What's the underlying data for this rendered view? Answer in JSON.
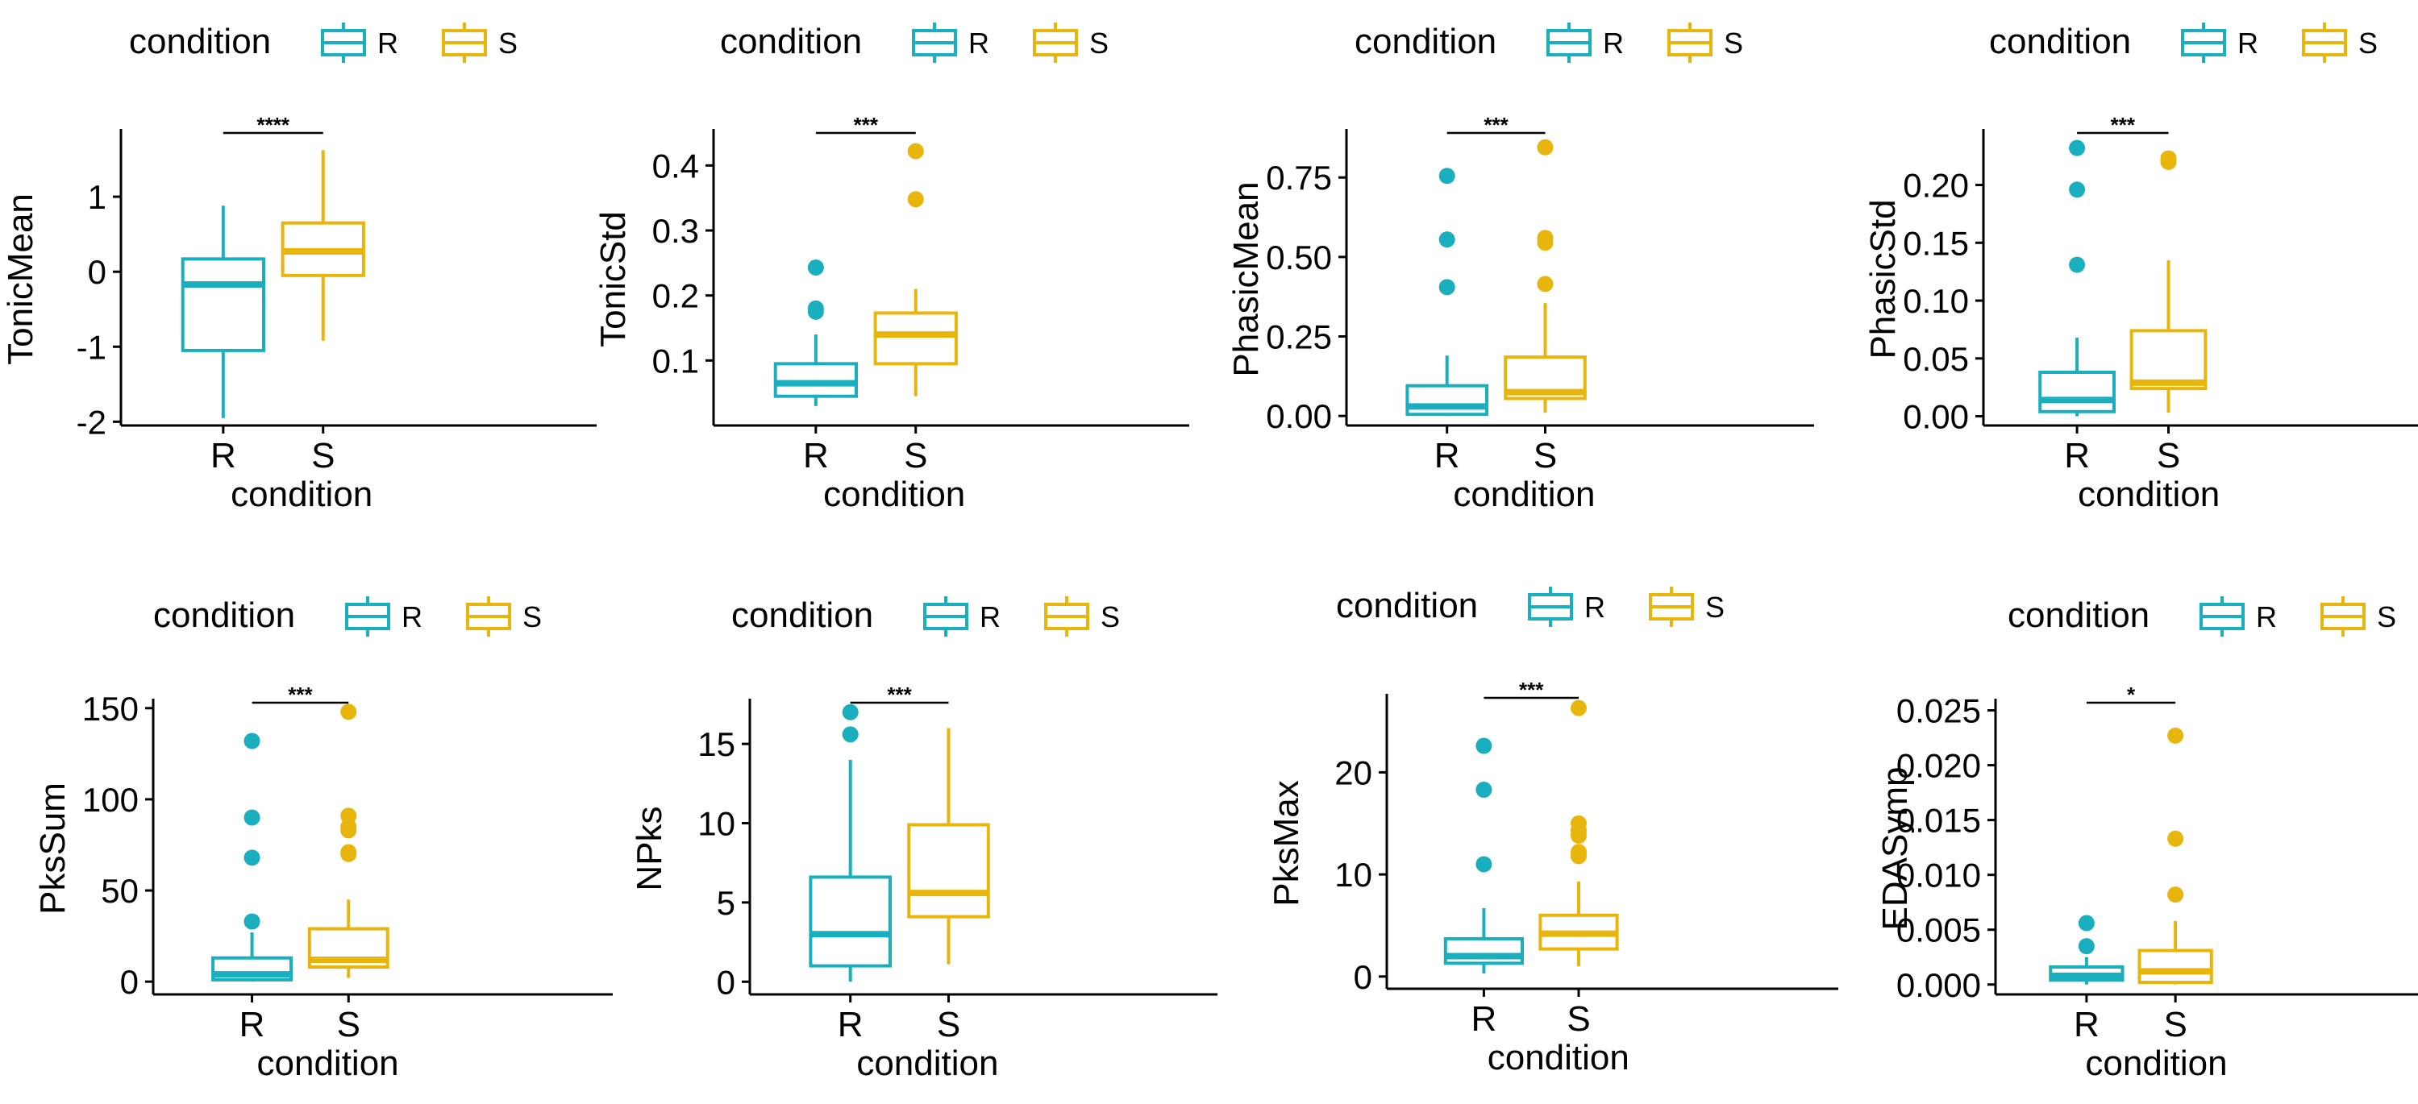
{
  "colors": {
    "R": "#1aafbf",
    "S": "#e8b50c"
  },
  "chart_data": [
    {
      "type": "boxplot",
      "ylabel": "TonicMean",
      "xlabel": "condition",
      "categories": [
        "R",
        "S"
      ],
      "ylim": [
        -2.05,
        1.85
      ],
      "yticks": [
        -2,
        -1,
        0,
        1
      ],
      "ytick_labels": [
        "-2",
        "-1",
        "0",
        "1"
      ],
      "legend": {
        "title": "condition",
        "entries": [
          "R",
          "S"
        ],
        "position": "top"
      },
      "significance": "****",
      "boxes": [
        {
          "group": "R",
          "min": -1.95,
          "q1": -1.05,
          "median": -0.17,
          "q3": 0.17,
          "max": 0.88,
          "outliers": []
        },
        {
          "group": "S",
          "min": -0.92,
          "q1": -0.05,
          "median": 0.27,
          "q3": 0.65,
          "max": 1.62,
          "outliers": []
        }
      ]
    },
    {
      "type": "boxplot",
      "ylabel": "TonicStd",
      "xlabel": "condition",
      "categories": [
        "R",
        "S"
      ],
      "ylim": [
        0.0,
        0.45
      ],
      "yticks": [
        0.1,
        0.2,
        0.3,
        0.4
      ],
      "ytick_labels": [
        "0.1",
        "0.2",
        "0.3",
        "0.4"
      ],
      "legend": {
        "title": "condition",
        "entries": [
          "R",
          "S"
        ],
        "position": "top"
      },
      "significance": "***",
      "boxes": [
        {
          "group": "R",
          "min": 0.03,
          "q1": 0.045,
          "median": 0.065,
          "q3": 0.095,
          "max": 0.14,
          "outliers": [
            0.175,
            0.18,
            0.243
          ]
        },
        {
          "group": "S",
          "min": 0.045,
          "q1": 0.095,
          "median": 0.14,
          "q3": 0.173,
          "max": 0.21,
          "outliers": [
            0.348,
            0.422
          ]
        }
      ]
    },
    {
      "type": "boxplot",
      "ylabel": "PhasicMean",
      "xlabel": "condition",
      "categories": [
        "R",
        "S"
      ],
      "ylim": [
        -0.03,
        0.89
      ],
      "yticks": [
        0.0,
        0.25,
        0.5,
        0.75
      ],
      "ytick_labels": [
        "0.00",
        "0.25",
        "0.50",
        "0.75"
      ],
      "legend": {
        "title": "condition",
        "entries": [
          "R",
          "S"
        ],
        "position": "top"
      },
      "significance": "***",
      "boxes": [
        {
          "group": "R",
          "min": 0.0,
          "q1": 0.005,
          "median": 0.03,
          "q3": 0.095,
          "max": 0.19,
          "outliers": [
            0.405,
            0.555,
            0.755
          ]
        },
        {
          "group": "S",
          "min": 0.01,
          "q1": 0.055,
          "median": 0.075,
          "q3": 0.185,
          "max": 0.355,
          "outliers": [
            0.415,
            0.545,
            0.56,
            0.845
          ]
        }
      ]
    },
    {
      "type": "boxplot",
      "ylabel": "PhasicStd",
      "xlabel": "condition",
      "categories": [
        "R",
        "S"
      ],
      "ylim": [
        -0.008,
        0.245
      ],
      "yticks": [
        0.0,
        0.05,
        0.1,
        0.15,
        0.2
      ],
      "ytick_labels": [
        "0.00",
        "0.05",
        "0.10",
        "0.15",
        "0.20"
      ],
      "legend": {
        "title": "condition",
        "entries": [
          "R",
          "S"
        ],
        "position": "top"
      },
      "significance": "***",
      "boxes": [
        {
          "group": "R",
          "min": 0.0,
          "q1": 0.004,
          "median": 0.014,
          "q3": 0.038,
          "max": 0.068,
          "outliers": [
            0.131,
            0.196,
            0.232
          ]
        },
        {
          "group": "S",
          "min": 0.003,
          "q1": 0.024,
          "median": 0.029,
          "q3": 0.074,
          "max": 0.135,
          "outliers": [
            0.22,
            0.223
          ]
        }
      ]
    },
    {
      "type": "boxplot",
      "ylabel": "PksSum",
      "xlabel": "condition",
      "categories": [
        "R",
        "S"
      ],
      "ylim": [
        -7,
        153
      ],
      "yticks": [
        0,
        50,
        100,
        150
      ],
      "ytick_labels": [
        "0",
        "50",
        "100",
        "150"
      ],
      "legend": {
        "title": "condition",
        "entries": [
          "R",
          "S"
        ],
        "position": "top"
      },
      "significance": "***",
      "boxes": [
        {
          "group": "R",
          "min": 0,
          "q1": 1,
          "median": 4,
          "q3": 13,
          "max": 27,
          "outliers": [
            33,
            68,
            90,
            132
          ]
        },
        {
          "group": "S",
          "min": 2,
          "q1": 8,
          "median": 12,
          "q3": 29,
          "max": 45,
          "outliers": [
            70,
            71,
            83,
            85,
            91,
            148
          ]
        }
      ]
    },
    {
      "type": "boxplot",
      "ylabel": "NPks",
      "xlabel": "condition",
      "categories": [
        "R",
        "S"
      ],
      "ylim": [
        -0.8,
        17.6
      ],
      "yticks": [
        0,
        5,
        10,
        15
      ],
      "ytick_labels": [
        "0",
        "5",
        "10",
        "15"
      ],
      "legend": {
        "title": "condition",
        "entries": [
          "R",
          "S"
        ],
        "position": "top"
      },
      "significance": "***",
      "boxes": [
        {
          "group": "R",
          "min": 0,
          "q1": 1,
          "median": 3,
          "q3": 6.6,
          "max": 14,
          "outliers": [
            15.6,
            17
          ]
        },
        {
          "group": "S",
          "min": 1.1,
          "q1": 4.1,
          "median": 5.6,
          "q3": 9.9,
          "max": 16,
          "outliers": []
        }
      ]
    },
    {
      "type": "boxplot",
      "ylabel": "PksMax",
      "xlabel": "condition",
      "categories": [
        "R",
        "S"
      ],
      "ylim": [
        -1.2,
        27.3
      ],
      "yticks": [
        0,
        10,
        20
      ],
      "ytick_labels": [
        "0",
        "10",
        "20"
      ],
      "legend": {
        "title": "condition",
        "entries": [
          "R",
          "S"
        ],
        "position": "top"
      },
      "significance": "***",
      "boxes": [
        {
          "group": "R",
          "min": 0.3,
          "q1": 1.3,
          "median": 2,
          "q3": 3.7,
          "max": 6.7,
          "outliers": [
            11,
            18.3,
            22.6
          ]
        },
        {
          "group": "S",
          "min": 1,
          "q1": 2.7,
          "median": 4.2,
          "q3": 6,
          "max": 9.3,
          "outliers": [
            11.8,
            12.2,
            13.8,
            14.3,
            15,
            26.3
          ]
        }
      ]
    },
    {
      "type": "boxplot",
      "ylabel": "EDASymp",
      "xlabel": "condition",
      "categories": [
        "R",
        "S"
      ],
      "ylim": [
        -0.0009,
        0.0257
      ],
      "yticks": [
        0.0,
        0.005,
        0.01,
        0.015,
        0.02,
        0.025
      ],
      "ytick_labels": [
        "0.000",
        "0.005",
        "0.010",
        "0.015",
        "0.020",
        "0.025"
      ],
      "legend": {
        "title": "condition",
        "entries": [
          "R",
          "S"
        ],
        "position": "top"
      },
      "significance": "*",
      "boxes": [
        {
          "group": "R",
          "min": 0.0,
          "q1": 0.0004,
          "median": 0.0008,
          "q3": 0.0016,
          "max": 0.0025,
          "outliers": [
            0.0035,
            0.0056
          ]
        },
        {
          "group": "S",
          "min": 0.0,
          "q1": 0.0002,
          "median": 0.0012,
          "q3": 0.0031,
          "max": 0.0058,
          "outliers": [
            0.0082,
            0.0133,
            0.0227
          ]
        }
      ]
    }
  ]
}
